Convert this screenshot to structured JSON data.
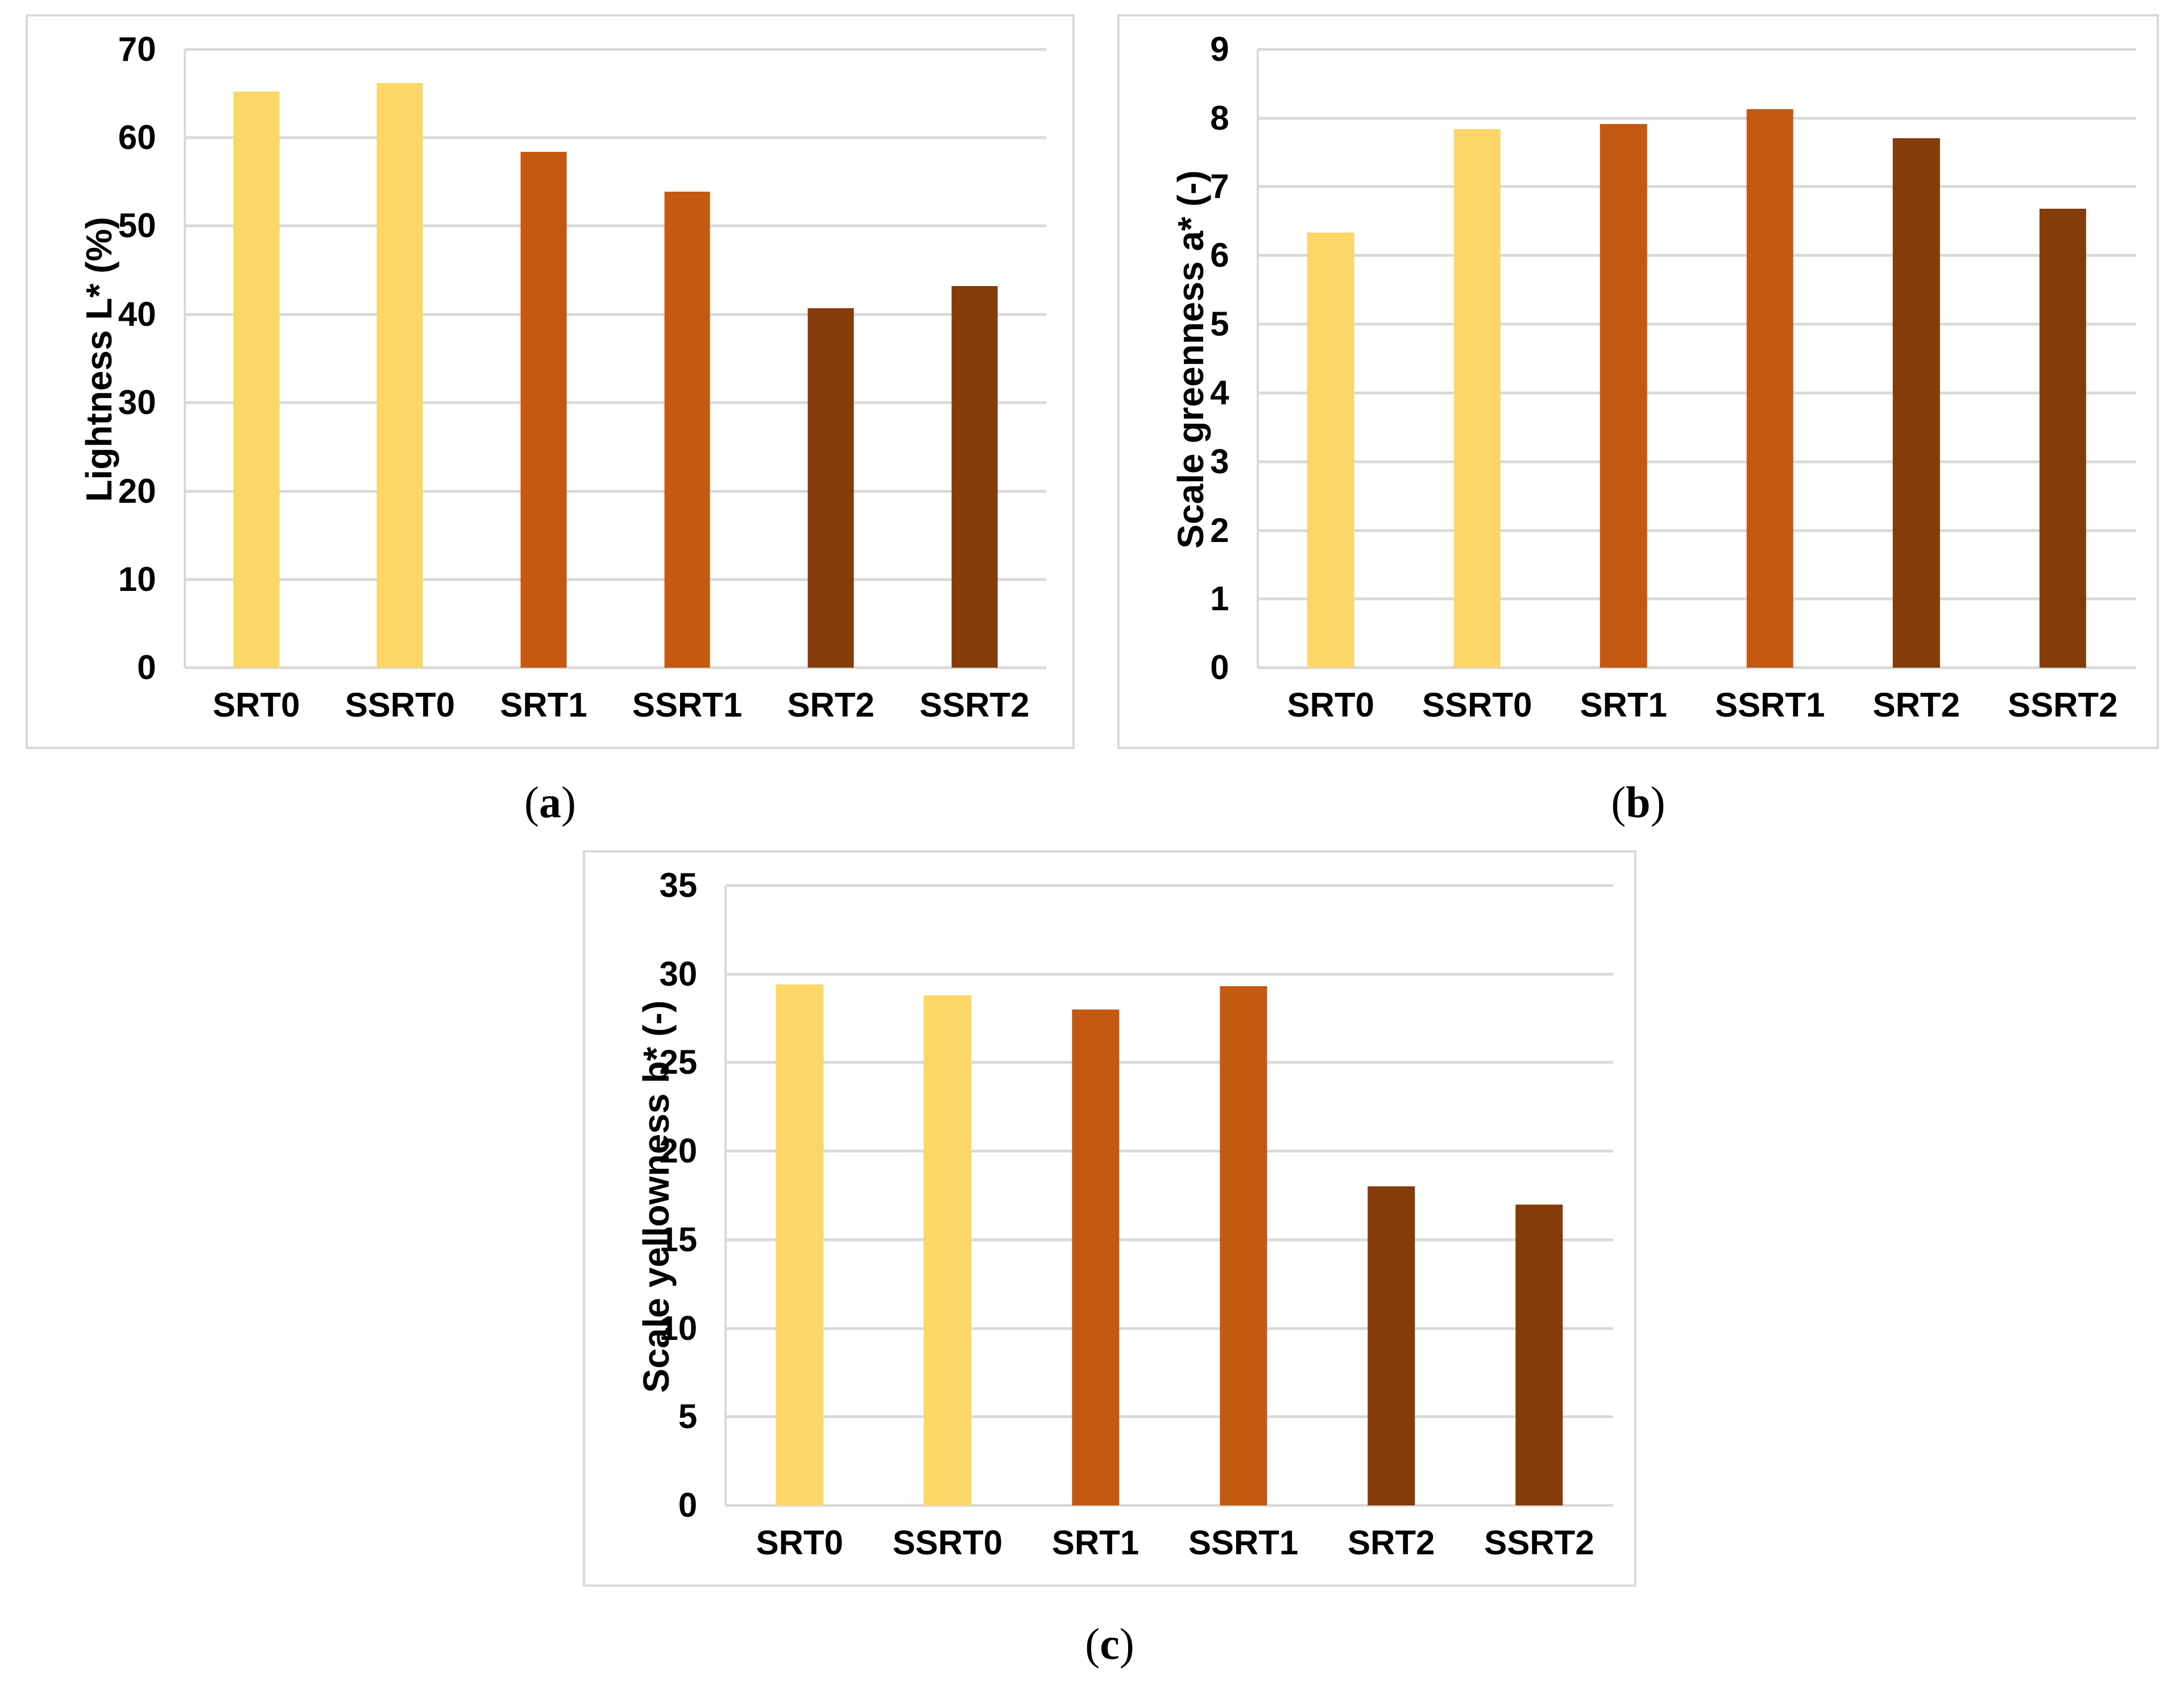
{
  "colors": {
    "bar_yellow": "#FCD667",
    "bar_orange": "#C45A11",
    "bar_brown": "#843C0B",
    "gridline": "#D9D9D9",
    "axis_line": "#D9D9D9",
    "panel_border": "#D9D9D9",
    "text": "#000000"
  },
  "captions": [
    {
      "open": "(",
      "letter": "a",
      "close": ")"
    },
    {
      "open": "(",
      "letter": "b",
      "close": ")"
    },
    {
      "open": "(",
      "letter": "c",
      "close": ")"
    }
  ],
  "chart_data": [
    {
      "type": "bar",
      "title": "",
      "xlabel": "",
      "ylabel": "Lightness L* (%)",
      "categories": [
        "SRT0",
        "SSRT0",
        "SRT1",
        "SSRT1",
        "SRT2",
        "SSRT2"
      ],
      "values": [
        65.2,
        66.2,
        58.4,
        53.9,
        40.7,
        43.2
      ],
      "bar_colors": [
        "#FCD667",
        "#FCD667",
        "#C45A11",
        "#C45A11",
        "#843C0B",
        "#843C0B"
      ],
      "ylim": [
        0,
        70
      ],
      "yticks": [
        0,
        10,
        20,
        30,
        40,
        50,
        60,
        70
      ],
      "grid": true,
      "legend": "none",
      "panel_label": "(a)"
    },
    {
      "type": "bar",
      "title": "",
      "xlabel": "",
      "ylabel": "Scale greenness a* (-)",
      "categories": [
        "SRT0",
        "SSRT0",
        "SRT1",
        "SSRT1",
        "SRT2",
        "SSRT2"
      ],
      "values": [
        6.33,
        7.84,
        7.91,
        8.13,
        7.71,
        6.68
      ],
      "bar_colors": [
        "#FCD667",
        "#FCD667",
        "#C45A11",
        "#C45A11",
        "#843C0B",
        "#843C0B"
      ],
      "ylim": [
        0,
        9
      ],
      "yticks": [
        0,
        1,
        2,
        3,
        4,
        5,
        6,
        7,
        8,
        9
      ],
      "grid": true,
      "legend": "none",
      "panel_label": "(b)"
    },
    {
      "type": "bar",
      "title": "",
      "xlabel": "",
      "ylabel": "Scale yellowness b* (-)",
      "categories": [
        "SRT0",
        "SSRT0",
        "SRT1",
        "SSRT1",
        "SRT2",
        "SSRT2"
      ],
      "values": [
        29.4,
        28.8,
        28.0,
        29.3,
        18.0,
        17.0
      ],
      "bar_colors": [
        "#FCD667",
        "#FCD667",
        "#C45A11",
        "#C45A11",
        "#843C0B",
        "#843C0B"
      ],
      "ylim": [
        0,
        35
      ],
      "yticks": [
        0,
        5,
        10,
        15,
        20,
        25,
        30,
        35
      ],
      "grid": true,
      "legend": "none",
      "panel_label": "(c)"
    }
  ]
}
